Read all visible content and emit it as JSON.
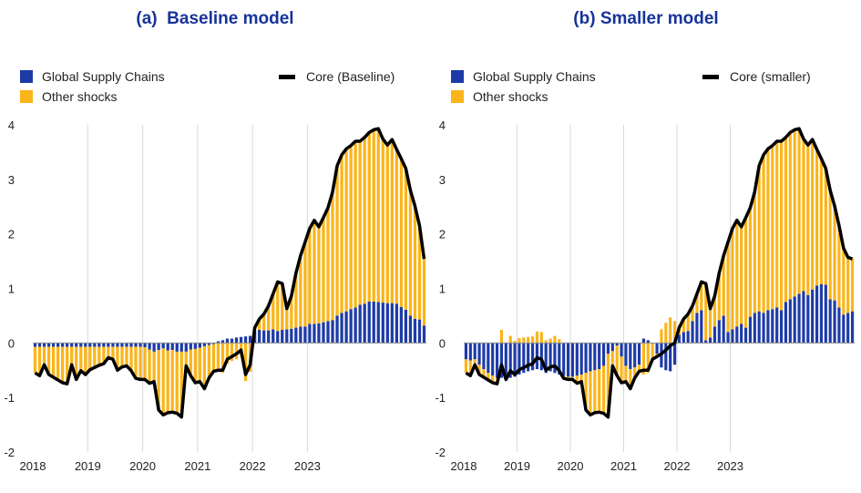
{
  "colors": {
    "supply": "#1d3ba7",
    "other": "#fbb519",
    "core": "#000000"
  },
  "chart_data": [
    {
      "type": "bar",
      "title": "(a)  Baseline model",
      "legend": {
        "supply": "Global Supply Chains",
        "other": "Other shocks",
        "core": "Core (Baseline)"
      },
      "ylim": [
        -2,
        4
      ],
      "yticks": [
        "-2",
        "-1",
        "0",
        "1",
        "2",
        "3",
        "4"
      ],
      "xticks": [
        "2018",
        "2019",
        "2020",
        "2021",
        "2022",
        "2023"
      ],
      "grid": "vertical",
      "series": [
        {
          "name": "Global Supply Chains",
          "kind": "bar",
          "values": [
            -0.07,
            -0.07,
            -0.07,
            -0.07,
            -0.07,
            -0.07,
            -0.07,
            -0.07,
            -0.07,
            -0.07,
            -0.07,
            -0.07,
            -0.07,
            -0.07,
            -0.07,
            -0.07,
            -0.07,
            -0.07,
            -0.07,
            -0.07,
            -0.07,
            -0.07,
            -0.07,
            -0.07,
            -0.08,
            -0.12,
            -0.16,
            -0.13,
            -0.1,
            -0.14,
            -0.13,
            -0.16,
            -0.16,
            -0.16,
            -0.12,
            -0.11,
            -0.09,
            -0.06,
            -0.04,
            -0.02,
            0.03,
            0.05,
            0.08,
            0.08,
            0.1,
            0.11,
            0.12,
            0.13,
            0.22,
            0.24,
            0.23,
            0.23,
            0.25,
            0.22,
            0.24,
            0.25,
            0.26,
            0.28,
            0.3,
            0.3,
            0.35,
            0.35,
            0.36,
            0.38,
            0.4,
            0.42,
            0.5,
            0.55,
            0.58,
            0.62,
            0.65,
            0.7,
            0.72,
            0.76,
            0.76,
            0.75,
            0.74,
            0.73,
            0.73,
            0.72,
            0.66,
            0.61,
            0.5,
            0.44,
            0.43,
            0.32
          ]
        },
        {
          "name": "Other shocks",
          "kind": "bar",
          "values": [
            -0.48,
            -0.53,
            -0.33,
            -0.51,
            -0.56,
            -0.61,
            -0.66,
            -0.68,
            -0.33,
            -0.6,
            -0.44,
            -0.51,
            -0.42,
            -0.38,
            -0.34,
            -0.31,
            -0.2,
            -0.23,
            -0.43,
            -0.37,
            -0.35,
            -0.44,
            -0.58,
            -0.6,
            -0.59,
            -0.62,
            -0.55,
            -1.1,
            -1.22,
            -1.14,
            -1.14,
            -1.13,
            -1.2,
            -0.26,
            -0.48,
            -0.62,
            -0.62,
            -0.78,
            -0.6,
            -0.5,
            -0.53,
            -0.55,
            -0.38,
            -0.33,
            -0.3,
            -0.24,
            -0.7,
            -0.53,
            0.06,
            0.2,
            0.3,
            0.45,
            0.65,
            0.9,
            0.85,
            0.38,
            0.6,
            1.0,
            1.3,
            1.55,
            1.75,
            1.9,
            1.77,
            1.92,
            2.08,
            2.35,
            2.75,
            2.9,
            2.98,
            3.0,
            3.05,
            3.0,
            3.05,
            3.1,
            3.15,
            3.18,
            3.0,
            2.9,
            3.0,
            2.83,
            2.72,
            2.59,
            2.3,
            2.07,
            1.72,
            1.22
          ]
        },
        {
          "name": "Core (Baseline)",
          "kind": "line",
          "values": [
            -0.55,
            -0.6,
            -0.4,
            -0.58,
            -0.63,
            -0.68,
            -0.73,
            -0.75,
            -0.4,
            -0.67,
            -0.51,
            -0.58,
            -0.49,
            -0.45,
            -0.41,
            -0.38,
            -0.27,
            -0.3,
            -0.5,
            -0.44,
            -0.42,
            -0.51,
            -0.65,
            -0.67,
            -0.67,
            -0.74,
            -0.71,
            -1.23,
            -1.32,
            -1.28,
            -1.27,
            -1.29,
            -1.36,
            -0.42,
            -0.6,
            -0.73,
            -0.71,
            -0.84,
            -0.64,
            -0.52,
            -0.5,
            -0.5,
            -0.3,
            -0.25,
            -0.2,
            -0.13,
            -0.58,
            -0.4,
            0.28,
            0.44,
            0.53,
            0.68,
            0.9,
            1.12,
            1.09,
            0.63,
            0.86,
            1.28,
            1.6,
            1.85,
            2.1,
            2.25,
            2.13,
            2.3,
            2.48,
            2.77,
            3.25,
            3.45,
            3.56,
            3.62,
            3.7,
            3.7,
            3.77,
            3.86,
            3.91,
            3.93,
            3.74,
            3.63,
            3.73,
            3.55,
            3.38,
            3.2,
            2.8,
            2.51,
            2.15,
            1.54
          ]
        }
      ]
    },
    {
      "type": "bar",
      "title": "(b) Smaller model",
      "legend": {
        "supply": "Global Supply Chains",
        "other": "Other shocks",
        "core": "Core (smaller)"
      },
      "ylim": [
        -2,
        4
      ],
      "yticks": [
        "-2",
        "-1",
        "0",
        "1",
        "2",
        "3",
        "4"
      ],
      "xticks": [
        "2018",
        "2019",
        "2020",
        "2021",
        "2022",
        "2023"
      ],
      "grid": "vertical",
      "series": [
        {
          "name": "Global Supply Chains",
          "kind": "bar",
          "values": [
            -0.3,
            -0.32,
            -0.3,
            -0.4,
            -0.48,
            -0.55,
            -0.6,
            -0.64,
            -0.64,
            -0.65,
            -0.64,
            -0.62,
            -0.58,
            -0.55,
            -0.52,
            -0.5,
            -0.48,
            -0.5,
            -0.55,
            -0.52,
            -0.55,
            -0.58,
            -0.6,
            -0.62,
            -0.62,
            -0.6,
            -0.58,
            -0.55,
            -0.52,
            -0.5,
            -0.48,
            -0.42,
            -0.2,
            -0.15,
            -0.05,
            -0.25,
            -0.42,
            -0.48,
            -0.45,
            -0.4,
            0.08,
            0.05,
            0.0,
            -0.2,
            -0.45,
            -0.5,
            -0.52,
            -0.4,
            0.15,
            0.2,
            0.22,
            0.4,
            0.55,
            0.6,
            0.05,
            0.1,
            0.3,
            0.42,
            0.5,
            0.2,
            0.25,
            0.3,
            0.35,
            0.28,
            0.48,
            0.55,
            0.58,
            0.55,
            0.6,
            0.62,
            0.65,
            0.6,
            0.75,
            0.8,
            0.85,
            0.9,
            0.95,
            0.88,
            0.98,
            1.05,
            1.08,
            1.07,
            0.8,
            0.78,
            0.65,
            0.52,
            0.55,
            0.58
          ]
        },
        {
          "name": "Other shocks",
          "kind": "bar",
          "values": [
            -0.25,
            -0.28,
            -0.1,
            -0.18,
            -0.15,
            -0.13,
            -0.13,
            -0.11,
            0.24,
            -0.02,
            0.13,
            0.04,
            0.09,
            0.1,
            0.11,
            0.12,
            0.21,
            0.2,
            0.05,
            0.08,
            0.13,
            0.07,
            -0.05,
            -0.05,
            -0.05,
            -0.14,
            -0.13,
            -0.68,
            -0.8,
            -0.78,
            -0.79,
            -0.87,
            -1.16,
            -0.27,
            -0.55,
            -0.48,
            -0.29,
            -0.36,
            -0.19,
            -0.12,
            -0.58,
            -0.55,
            -0.3,
            -0.05,
            0.25,
            0.37,
            0.47,
            0.4,
            0.13,
            0.24,
            0.31,
            0.28,
            0.35,
            0.52,
            1.04,
            0.53,
            0.56,
            0.86,
            1.1,
            1.65,
            1.85,
            1.95,
            1.78,
            2.02,
            2.0,
            2.22,
            2.67,
            2.9,
            2.96,
            3.0,
            3.05,
            3.1,
            3.02,
            3.06,
            3.06,
            3.03,
            2.79,
            2.75,
            2.75,
            2.5,
            2.3,
            2.13,
            2.0,
            1.73,
            1.5,
            1.22,
            1.02,
            0.96
          ]
        },
        {
          "name": "Core (smaller)",
          "kind": "line",
          "values": [
            -0.55,
            -0.6,
            -0.4,
            -0.58,
            -0.63,
            -0.68,
            -0.73,
            -0.75,
            -0.4,
            -0.67,
            -0.51,
            -0.58,
            -0.49,
            -0.45,
            -0.41,
            -0.38,
            -0.27,
            -0.3,
            -0.5,
            -0.44,
            -0.42,
            -0.51,
            -0.65,
            -0.67,
            -0.67,
            -0.74,
            -0.71,
            -1.23,
            -1.32,
            -1.28,
            -1.27,
            -1.29,
            -1.36,
            -0.42,
            -0.6,
            -0.73,
            -0.71,
            -0.84,
            -0.64,
            -0.52,
            -0.5,
            -0.5,
            -0.3,
            -0.25,
            -0.2,
            -0.13,
            -0.05,
            0.0,
            0.28,
            0.44,
            0.53,
            0.68,
            0.9,
            1.12,
            1.09,
            0.63,
            0.86,
            1.28,
            1.6,
            1.85,
            2.1,
            2.25,
            2.13,
            2.3,
            2.48,
            2.77,
            3.25,
            3.45,
            3.56,
            3.62,
            3.7,
            3.7,
            3.77,
            3.86,
            3.91,
            3.93,
            3.74,
            3.63,
            3.73,
            3.55,
            3.38,
            3.2,
            2.8,
            2.51,
            2.15,
            1.74,
            1.57,
            1.54
          ]
        }
      ]
    }
  ]
}
